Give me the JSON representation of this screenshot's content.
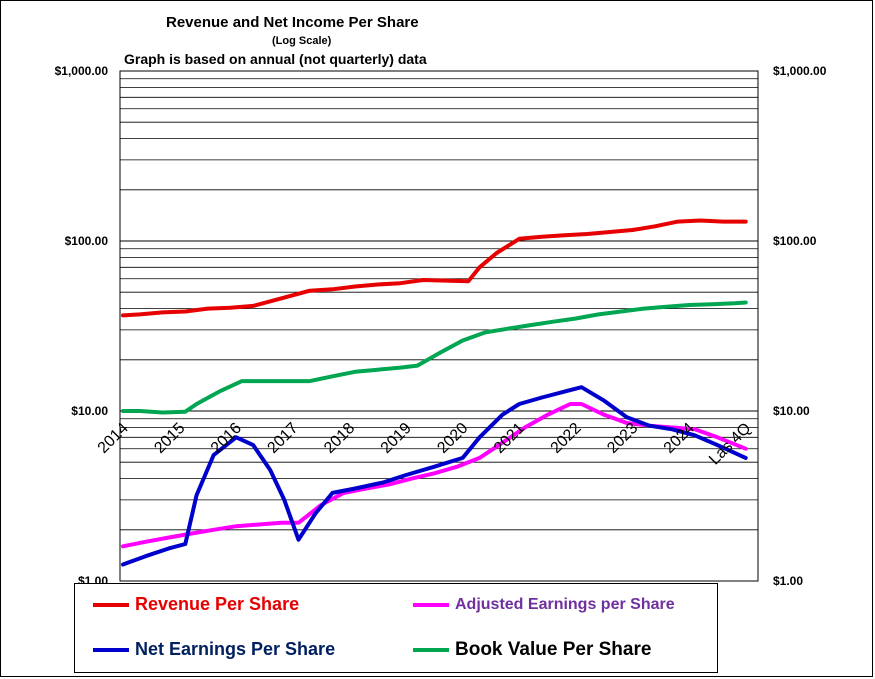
{
  "titles": {
    "main": "Revenue  and Net Income  Per Share",
    "sub": "(Log  Scale)",
    "sub2": "Graph is based  on annual  (not quarterly) data"
  },
  "chart_data": {
    "type": "line",
    "y_scale": "log",
    "ylim": [
      1,
      1000
    ],
    "y_ticks": [
      1,
      10,
      100,
      1000
    ],
    "left_tick_labels": [
      "$1.00",
      "$10.00",
      "$100.00",
      "$1,000.00"
    ],
    "right_tick_labels": [
      "$1.00",
      "$10.00",
      "$100.00",
      "$1,000.00"
    ],
    "categories": [
      "2014",
      "2015",
      "2016",
      "2017",
      "2018",
      "2019",
      "2020",
      "2021",
      "2022",
      "2023",
      "2024",
      "Las 4Q"
    ],
    "series": [
      {
        "name": "Revenue Per Share",
        "color": "#e60000",
        "x": [
          0,
          0.3,
          0.7,
          1.1,
          1.5,
          1.9,
          2.3,
          2.8,
          3.3,
          3.7,
          4.1,
          4.5,
          4.9,
          5.3,
          5.7,
          6.1,
          6.3,
          6.6,
          7.0,
          7.4,
          7.8,
          8.2,
          8.6,
          9.0,
          9.4,
          9.8,
          10.2,
          10.6,
          11.0
        ],
        "values": [
          36.5,
          37,
          38,
          38.5,
          40,
          40.5,
          41.5,
          46,
          51,
          52,
          54,
          55.5,
          56.5,
          59,
          58.5,
          58,
          70,
          85,
          103,
          106,
          108,
          110,
          113,
          116,
          122,
          130,
          132,
          130,
          130
        ]
      },
      {
        "name": "Book Value Per Share",
        "color": "#00a651",
        "x": [
          0,
          0.3,
          0.7,
          1.1,
          1.3,
          1.7,
          2.1,
          2.5,
          2.9,
          3.3,
          3.7,
          4.1,
          4.5,
          4.9,
          5.2,
          5.6,
          6.0,
          6.4,
          6.8,
          7.2,
          7.6,
          8.0,
          8.4,
          8.8,
          9.2,
          9.6,
          10.0,
          10.4,
          10.8,
          11.0
        ],
        "values": [
          10,
          10,
          9.8,
          9.9,
          11,
          13,
          15,
          15,
          15,
          15,
          16,
          17,
          17.5,
          18,
          18.5,
          22,
          26,
          29,
          30.5,
          32,
          33.5,
          35,
          37,
          38.5,
          40,
          41,
          42,
          42.5,
          43,
          43.5
        ]
      },
      {
        "name": "Net Earnings Per Share",
        "color": "#0000cc",
        "x": [
          0,
          0.4,
          0.8,
          1.1,
          1.3,
          1.6,
          2.0,
          2.3,
          2.6,
          2.85,
          3.1,
          3.4,
          3.7,
          4.1,
          4.6,
          5.0,
          5.5,
          6.0,
          6.3,
          6.7,
          7.0,
          7.4,
          7.8,
          8.1,
          8.5,
          8.9,
          9.3,
          9.7,
          10.1,
          10.5,
          11.0
        ],
        "values": [
          1.25,
          1.4,
          1.55,
          1.65,
          3.2,
          5.5,
          7,
          6.3,
          4.5,
          3.0,
          1.75,
          2.5,
          3.3,
          3.5,
          3.8,
          4.2,
          4.7,
          5.3,
          7,
          9.5,
          11,
          12,
          13,
          13.8,
          11.5,
          9.2,
          8.2,
          7.8,
          7.2,
          6.3,
          5.3
        ]
      },
      {
        "name": "Adjusted Earnings per Share",
        "color": "#ff00ff",
        "x": [
          0,
          0.4,
          0.8,
          1.2,
          1.6,
          2.0,
          2.4,
          2.8,
          3.1,
          3.5,
          3.9,
          4.3,
          4.7,
          5.1,
          5.5,
          5.9,
          6.3,
          6.7,
          7.1,
          7.5,
          7.9,
          8.1,
          8.5,
          8.9,
          9.3,
          9.7,
          10.1,
          10.5,
          11.0
        ],
        "values": [
          1.6,
          1.7,
          1.8,
          1.9,
          2.0,
          2.1,
          2.15,
          2.2,
          2.2,
          2.8,
          3.3,
          3.5,
          3.7,
          4.0,
          4.3,
          4.7,
          5.3,
          6.5,
          8.0,
          9.5,
          11.0,
          11.0,
          9.5,
          8.5,
          8.2,
          8.0,
          7.8,
          7.0,
          6.0
        ]
      }
    ]
  },
  "legend": {
    "revenue": {
      "label": "Revenue Per Share",
      "color": "#e60000",
      "text_color": "#e60000"
    },
    "adjusted": {
      "label": "Adjusted Earnings per Share",
      "color": "#ff00ff",
      "text_color": "#7030a0"
    },
    "net": {
      "label": "Net Earnings Per Share",
      "color": "#0000cc",
      "text_color": "#002060"
    },
    "book": {
      "label": "Book Value Per Share",
      "color": "#00a651",
      "text_color": "#000000"
    }
  }
}
